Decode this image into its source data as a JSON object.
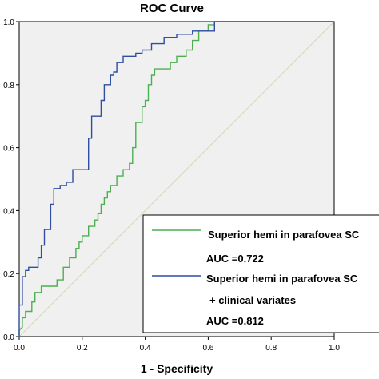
{
  "chart_data": {
    "type": "line",
    "title": "ROC Curve",
    "xlabel": "1 - Specificity",
    "ylabel": "",
    "xlim": [
      0,
      1
    ],
    "ylim": [
      0,
      1
    ],
    "x_ticks": [
      "0.0",
      "0.2",
      "0.4",
      "0.6",
      "0.8",
      "1.0"
    ],
    "y_ticks": [
      "0.0",
      "0.2",
      "0.4",
      "0.6",
      "0.8",
      "1.0"
    ],
    "reference_line": {
      "from": [
        0,
        0
      ],
      "to": [
        1,
        1
      ],
      "color": "#d8d6a8"
    },
    "legend_position": "bottom-right",
    "series": [
      {
        "name": "Superior hemi in parafovea SC",
        "color": "#4caf50",
        "auc_label": "AUC =0.722",
        "points": [
          [
            0,
            0
          ],
          [
            0,
            0.02
          ],
          [
            0.01,
            0.03
          ],
          [
            0.01,
            0.06
          ],
          [
            0.02,
            0.06
          ],
          [
            0.02,
            0.08
          ],
          [
            0.04,
            0.08
          ],
          [
            0.04,
            0.11
          ],
          [
            0.05,
            0.11
          ],
          [
            0.05,
            0.14
          ],
          [
            0.07,
            0.14
          ],
          [
            0.07,
            0.16
          ],
          [
            0.12,
            0.16
          ],
          [
            0.12,
            0.18
          ],
          [
            0.14,
            0.18
          ],
          [
            0.14,
            0.22
          ],
          [
            0.16,
            0.22
          ],
          [
            0.16,
            0.25
          ],
          [
            0.18,
            0.25
          ],
          [
            0.18,
            0.28
          ],
          [
            0.19,
            0.28
          ],
          [
            0.19,
            0.3
          ],
          [
            0.2,
            0.3
          ],
          [
            0.2,
            0.32
          ],
          [
            0.22,
            0.32
          ],
          [
            0.22,
            0.35
          ],
          [
            0.24,
            0.35
          ],
          [
            0.24,
            0.37
          ],
          [
            0.25,
            0.37
          ],
          [
            0.25,
            0.39
          ],
          [
            0.26,
            0.39
          ],
          [
            0.26,
            0.42
          ],
          [
            0.27,
            0.42
          ],
          [
            0.27,
            0.44
          ],
          [
            0.28,
            0.44
          ],
          [
            0.28,
            0.46
          ],
          [
            0.29,
            0.46
          ],
          [
            0.29,
            0.48
          ],
          [
            0.31,
            0.48
          ],
          [
            0.31,
            0.51
          ],
          [
            0.33,
            0.51
          ],
          [
            0.33,
            0.53
          ],
          [
            0.35,
            0.53
          ],
          [
            0.35,
            0.55
          ],
          [
            0.36,
            0.55
          ],
          [
            0.36,
            0.6
          ],
          [
            0.37,
            0.6
          ],
          [
            0.37,
            0.68
          ],
          [
            0.39,
            0.68
          ],
          [
            0.39,
            0.73
          ],
          [
            0.4,
            0.73
          ],
          [
            0.4,
            0.75
          ],
          [
            0.41,
            0.75
          ],
          [
            0.41,
            0.8
          ],
          [
            0.42,
            0.8
          ],
          [
            0.42,
            0.83
          ],
          [
            0.43,
            0.83
          ],
          [
            0.43,
            0.85
          ],
          [
            0.48,
            0.85
          ],
          [
            0.48,
            0.87
          ],
          [
            0.5,
            0.87
          ],
          [
            0.5,
            0.89
          ],
          [
            0.53,
            0.89
          ],
          [
            0.53,
            0.91
          ],
          [
            0.55,
            0.91
          ],
          [
            0.55,
            0.94
          ],
          [
            0.57,
            0.94
          ],
          [
            0.57,
            0.97
          ],
          [
            0.6,
            0.97
          ],
          [
            0.6,
            0.99
          ],
          [
            0.62,
            0.99
          ],
          [
            0.62,
            1.0
          ],
          [
            1.0,
            1.0
          ]
        ]
      },
      {
        "name": "Superior hemi in parafovea SC",
        "name_line2": "+ clinical variates",
        "color": "#2f4ea0",
        "auc_label": "AUC =0.812",
        "points": [
          [
            0,
            0
          ],
          [
            0,
            0.1
          ],
          [
            0.01,
            0.1
          ],
          [
            0.01,
            0.19
          ],
          [
            0.02,
            0.19
          ],
          [
            0.02,
            0.21
          ],
          [
            0.03,
            0.21
          ],
          [
            0.03,
            0.22
          ],
          [
            0.06,
            0.22
          ],
          [
            0.06,
            0.25
          ],
          [
            0.07,
            0.25
          ],
          [
            0.07,
            0.29
          ],
          [
            0.08,
            0.29
          ],
          [
            0.08,
            0.34
          ],
          [
            0.1,
            0.34
          ],
          [
            0.1,
            0.42
          ],
          [
            0.11,
            0.42
          ],
          [
            0.11,
            0.47
          ],
          [
            0.13,
            0.47
          ],
          [
            0.13,
            0.48
          ],
          [
            0.15,
            0.48
          ],
          [
            0.15,
            0.49
          ],
          [
            0.17,
            0.49
          ],
          [
            0.17,
            0.53
          ],
          [
            0.22,
            0.53
          ],
          [
            0.22,
            0.63
          ],
          [
            0.23,
            0.63
          ],
          [
            0.23,
            0.7
          ],
          [
            0.26,
            0.7
          ],
          [
            0.26,
            0.75
          ],
          [
            0.27,
            0.75
          ],
          [
            0.27,
            0.8
          ],
          [
            0.29,
            0.8
          ],
          [
            0.29,
            0.83
          ],
          [
            0.3,
            0.83
          ],
          [
            0.3,
            0.84
          ],
          [
            0.31,
            0.84
          ],
          [
            0.31,
            0.87
          ],
          [
            0.33,
            0.87
          ],
          [
            0.33,
            0.89
          ],
          [
            0.37,
            0.89
          ],
          [
            0.37,
            0.9
          ],
          [
            0.39,
            0.9
          ],
          [
            0.39,
            0.91
          ],
          [
            0.42,
            0.91
          ],
          [
            0.42,
            0.93
          ],
          [
            0.46,
            0.93
          ],
          [
            0.46,
            0.95
          ],
          [
            0.5,
            0.95
          ],
          [
            0.5,
            0.96
          ],
          [
            0.55,
            0.96
          ],
          [
            0.55,
            0.97
          ],
          [
            0.62,
            0.97
          ],
          [
            0.62,
            1.0
          ],
          [
            1.0,
            1.0
          ]
        ]
      }
    ]
  }
}
